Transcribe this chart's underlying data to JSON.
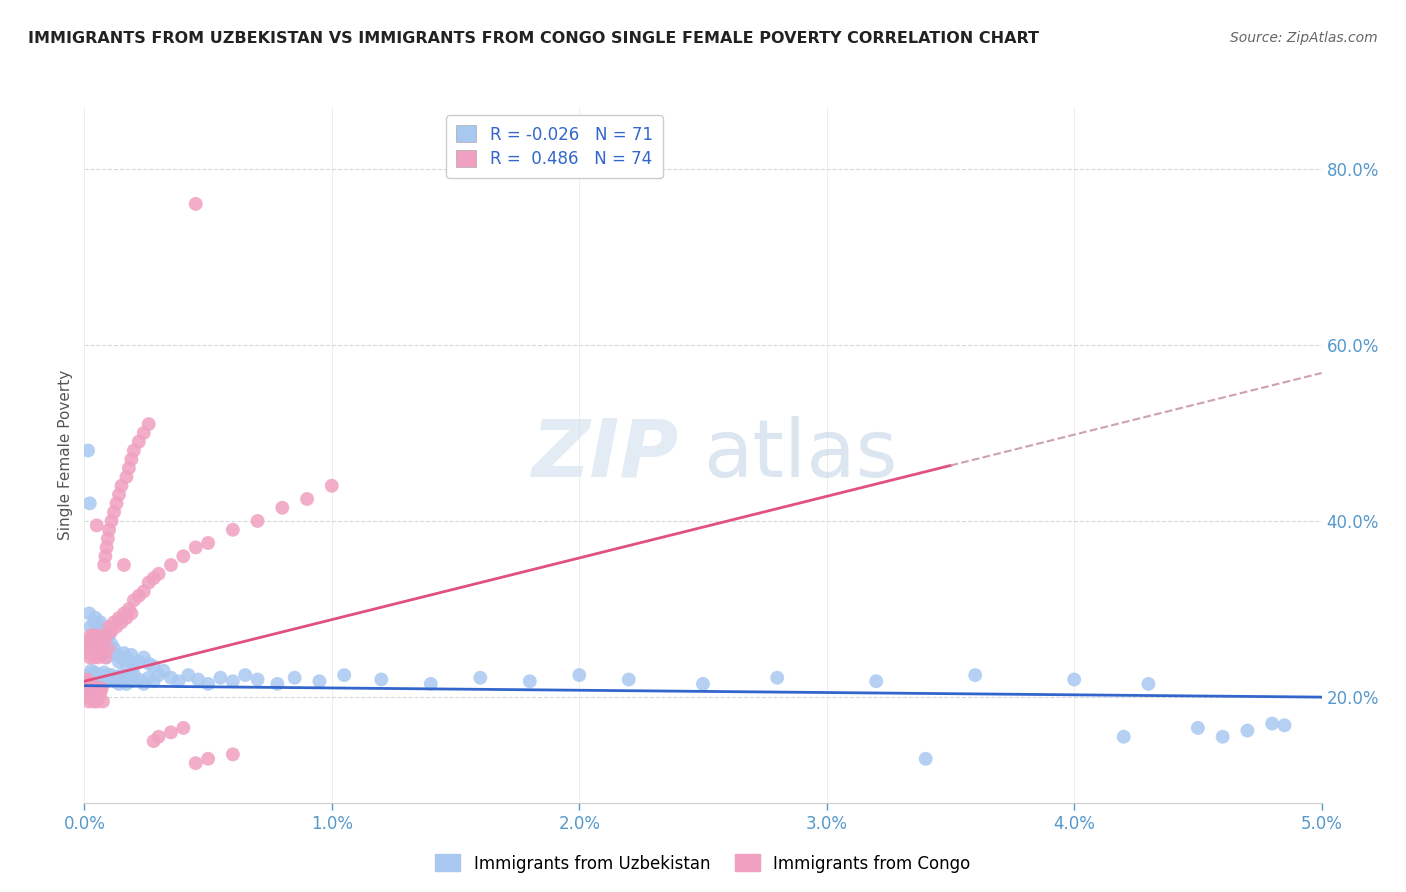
{
  "title": "IMMIGRANTS FROM UZBEKISTAN VS IMMIGRANTS FROM CONGO SINGLE FEMALE POVERTY CORRELATION CHART",
  "source": "Source: ZipAtlas.com",
  "ylabel": "Single Female Poverty",
  "watermark_zip": "ZIP",
  "watermark_atlas": "atlas",
  "legend_r1": "R = -0.026",
  "legend_n1": "N = 71",
  "legend_r2": "R =  0.486",
  "legend_n2": "N = 74",
  "series1_label": "Immigrants from Uzbekistan",
  "series2_label": "Immigrants from Congo",
  "series1_color": "#a8c8f0",
  "series2_color": "#f0a0c0",
  "line1_color": "#3366cc",
  "line2_color": "#e05080",
  "line2_dash_color": "#d0a0b0",
  "grid_color": "#d8d8d8",
  "background_color": "#ffffff",
  "title_color": "#222222",
  "source_color": "#666666",
  "axis_label_color": "#5599cc",
  "xmin": 0.0,
  "xmax": 0.05,
  "ymin": 0.08,
  "ymax": 0.87,
  "yticks": [
    0.2,
    0.4,
    0.6,
    0.8
  ],
  "xticks": [
    0.0,
    0.01,
    0.02,
    0.03,
    0.04,
    0.05
  ],
  "uzbekistan_x": [
    0.00018,
    0.0002,
    0.00025,
    0.00028,
    0.0003,
    0.00032,
    0.00035,
    0.00038,
    0.0004,
    0.00042,
    0.00045,
    0.00048,
    0.0005,
    0.00052,
    0.00055,
    0.00058,
    0.0006,
    0.00065,
    0.0007,
    0.00075,
    0.0008,
    0.00085,
    0.0009,
    0.00095,
    0.001,
    0.0011,
    0.0012,
    0.0013,
    0.0014,
    0.0015,
    0.0016,
    0.0017,
    0.0018,
    0.0019,
    0.002,
    0.0022,
    0.0024,
    0.0026,
    0.0028,
    0.003,
    0.0032,
    0.0035,
    0.0038,
    0.0042,
    0.0046,
    0.005,
    0.0055,
    0.006,
    0.0065,
    0.007,
    0.0078,
    0.0085,
    0.0095,
    0.0105,
    0.012,
    0.014,
    0.016,
    0.018,
    0.02,
    0.022,
    0.025,
    0.028,
    0.032,
    0.036,
    0.04,
    0.043,
    0.046,
    0.047,
    0.0485,
    0.00015,
    0.00022
  ],
  "uzbekistan_y": [
    0.21,
    0.225,
    0.215,
    0.23,
    0.22,
    0.215,
    0.225,
    0.22,
    0.215,
    0.228,
    0.222,
    0.218,
    0.225,
    0.22,
    0.215,
    0.222,
    0.218,
    0.225,
    0.22,
    0.215,
    0.228,
    0.222,
    0.218,
    0.225,
    0.22,
    0.225,
    0.218,
    0.222,
    0.215,
    0.225,
    0.22,
    0.215,
    0.222,
    0.218,
    0.225,
    0.22,
    0.215,
    0.222,
    0.218,
    0.225,
    0.23,
    0.222,
    0.218,
    0.225,
    0.22,
    0.215,
    0.222,
    0.218,
    0.225,
    0.22,
    0.215,
    0.222,
    0.218,
    0.225,
    0.22,
    0.215,
    0.222,
    0.218,
    0.225,
    0.22,
    0.215,
    0.222,
    0.218,
    0.225,
    0.22,
    0.215,
    0.155,
    0.162,
    0.168,
    0.48,
    0.42
  ],
  "uzbekistan_y_extra": [
    0.295,
    0.28,
    0.265,
    0.27,
    0.285,
    0.29,
    0.275,
    0.265,
    0.28,
    0.285,
    0.25,
    0.255,
    0.265,
    0.258,
    0.245,
    0.268,
    0.27,
    0.26,
    0.255,
    0.248,
    0.24,
    0.245,
    0.25,
    0.238,
    0.242,
    0.248,
    0.235,
    0.24,
    0.245,
    0.238,
    0.235,
    0.13,
    0.155,
    0.165,
    0.17
  ],
  "uzbekistan_x_extra": [
    0.0002,
    0.00025,
    0.0003,
    0.00035,
    0.0004,
    0.00045,
    0.0005,
    0.00055,
    0.0006,
    0.00065,
    0.0007,
    0.00075,
    0.0008,
    0.00085,
    0.0009,
    0.00095,
    0.001,
    0.0011,
    0.0012,
    0.0013,
    0.0014,
    0.0015,
    0.0016,
    0.0017,
    0.0018,
    0.0019,
    0.002,
    0.0022,
    0.0024,
    0.0026,
    0.0028,
    0.034,
    0.042,
    0.045,
    0.048
  ],
  "congo_x": [
    0.0001,
    0.00015,
    0.00018,
    0.0002,
    0.00022,
    0.00025,
    0.00028,
    0.0003,
    0.00032,
    0.00035,
    0.00038,
    0.0004,
    0.00042,
    0.00045,
    0.00048,
    0.0005,
    0.00055,
    0.0006,
    0.00065,
    0.0007,
    0.00075,
    0.0008,
    0.00085,
    0.0009,
    0.00095,
    0.001,
    0.0011,
    0.0012,
    0.0013,
    0.0014,
    0.0015,
    0.0016,
    0.0017,
    0.0018,
    0.0019,
    0.002,
    0.0022,
    0.0024,
    0.0026,
    0.0028,
    0.003,
    0.0035,
    0.004,
    0.0045,
    0.005,
    0.006,
    0.007,
    0.008,
    0.009,
    0.01,
    0.00012,
    8e-05,
    5e-05,
    0.0005,
    0.0045
  ],
  "congo_y": [
    0.255,
    0.26,
    0.25,
    0.265,
    0.245,
    0.27,
    0.255,
    0.26,
    0.25,
    0.265,
    0.245,
    0.27,
    0.255,
    0.26,
    0.25,
    0.265,
    0.245,
    0.27,
    0.255,
    0.26,
    0.25,
    0.265,
    0.245,
    0.27,
    0.255,
    0.28,
    0.275,
    0.285,
    0.28,
    0.29,
    0.285,
    0.295,
    0.29,
    0.3,
    0.295,
    0.31,
    0.315,
    0.32,
    0.33,
    0.335,
    0.34,
    0.35,
    0.36,
    0.37,
    0.375,
    0.39,
    0.4,
    0.415,
    0.425,
    0.44,
    0.22,
    0.215,
    0.218,
    0.395,
    0.76
  ],
  "congo_y_extra": [
    0.2,
    0.21,
    0.205,
    0.195,
    0.215,
    0.205,
    0.21,
    0.2,
    0.215,
    0.205,
    0.195,
    0.2,
    0.21,
    0.205,
    0.195,
    0.21,
    0.2,
    0.205,
    0.21,
    0.195,
    0.35,
    0.36,
    0.37,
    0.38,
    0.39,
    0.4,
    0.41,
    0.42,
    0.43,
    0.44,
    0.35,
    0.45,
    0.46,
    0.47,
    0.48,
    0.49,
    0.5,
    0.51,
    0.15,
    0.155,
    0.16,
    0.165,
    0.125,
    0.13,
    0.135
  ],
  "congo_x_extra": [
    8e-05,
    0.00012,
    0.00015,
    0.00018,
    0.0002,
    0.00022,
    0.00025,
    0.00028,
    0.0003,
    0.00035,
    0.00038,
    0.00042,
    0.00045,
    0.00048,
    0.0005,
    0.00055,
    0.0006,
    0.00065,
    0.0007,
    0.00075,
    0.0008,
    0.00085,
    0.0009,
    0.00095,
    0.001,
    0.0011,
    0.0012,
    0.0013,
    0.0014,
    0.0015,
    0.0016,
    0.0017,
    0.0018,
    0.0019,
    0.002,
    0.0022,
    0.0024,
    0.0026,
    0.0028,
    0.003,
    0.0035,
    0.004,
    0.0045,
    0.005,
    0.006
  ],
  "line1_slope": -0.26,
  "line1_intercept": 0.213,
  "line2_slope": 7.0,
  "line2_intercept": 0.218
}
